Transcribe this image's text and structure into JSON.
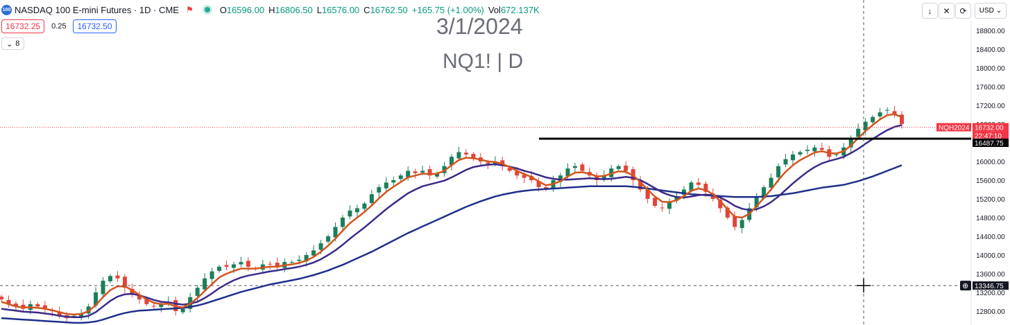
{
  "header": {
    "logo": "100",
    "symbol_title": "NASDAQ 100 E-mini Futures · 1D · CME",
    "flag_icon": "flag-icon",
    "ohlc": {
      "o_label": "O",
      "o": "16596.00",
      "h_label": "H",
      "h": "16806.50",
      "l_label": "L",
      "l": "16576.00",
      "c_label": "C",
      "c": "16762.50",
      "change": "+165.75 (+1.00%)",
      "vol_label": "Vol",
      "vol": "672.137K"
    }
  },
  "trade": {
    "bid": "16732.25",
    "spread": "0.25",
    "ask": "16732.50"
  },
  "indicators": {
    "toggle_icon": "chevron-down-icon",
    "count": "8"
  },
  "watermark": {
    "date": "3/1/2024",
    "ticker": "NQ1! | D"
  },
  "toolbar": {
    "download_icon": "download-icon",
    "collapse_icon": "collapse-icon",
    "refresh_icon": "refresh-icon",
    "currency": "USD"
  },
  "price_axis": {
    "ticks": [
      "18800.00",
      "18400.00",
      "18000.00",
      "17600.00",
      "17200.00",
      "16800.00",
      "16000.00",
      "15600.00",
      "15200.00",
      "14800.00",
      "14400.00",
      "14000.00",
      "13600.00",
      "13200.00",
      "12800.00"
    ]
  },
  "tags": {
    "symbol_tag": "NQH2024",
    "last_price": "16732.00",
    "countdown": "22:47:10",
    "hline_price": "16487.75",
    "crosshair_price": "13346.75"
  },
  "colors": {
    "up": "#1a7f5a",
    "down": "#e0443a",
    "ma_fast": "#d4541c",
    "ma_mid": "#3a2a8a",
    "ma_slow": "#1f2f8c",
    "hline": "#000000",
    "last_price": "#f23645"
  },
  "chart_data": {
    "type": "candlestick",
    "ylim": [
      12700,
      18900
    ],
    "hline": 16487.75,
    "last_price": 16732.0,
    "crosshair_y": 13346.75,
    "close_path": [
      13050,
      12950,
      12900,
      12850,
      12950,
      12900,
      12850,
      12800,
      12700,
      12650,
      12700,
      12750,
      12900,
      13200,
      13450,
      13550,
      13500,
      13300,
      13150,
      13050,
      12950,
      12900,
      12950,
      13000,
      12800,
      12850,
      13100,
      13300,
      13500,
      13650,
      13750,
      13750,
      13800,
      13850,
      13750,
      13700,
      13800,
      13800,
      13750,
      13850,
      13850,
      13900,
      14000,
      14100,
      14250,
      14400,
      14600,
      14800,
      14950,
      15000,
      15100,
      15300,
      15450,
      15550,
      15600,
      15700,
      15800,
      15750,
      15800,
      15700,
      15750,
      15900,
      16100,
      16200,
      16150,
      16050,
      16000,
      15950,
      16000,
      15900,
      15800,
      15700,
      15650,
      15600,
      15450,
      15400,
      15600,
      15700,
      15850,
      15900,
      15800,
      15700,
      15600,
      15700,
      15850,
      15900,
      15800,
      15600,
      15400,
      15200,
      15050,
      15000,
      15150,
      15250,
      15400,
      15550,
      15500,
      15350,
      15200,
      15000,
      14800,
      14600,
      14750,
      15000,
      15250,
      15450,
      15650,
      15900,
      16050,
      16150,
      16200,
      16250,
      16300,
      16250,
      16100,
      16150,
      16300,
      16500,
      16700,
      16850,
      16950,
      17050,
      17100,
      17000,
      16800
    ],
    "ma_fast": [
      13000,
      12950,
      12900,
      12880,
      12880,
      12870,
      12850,
      12820,
      12780,
      12740,
      12730,
      12740,
      12800,
      12930,
      13100,
      13250,
      13330,
      13330,
      13250,
      13150,
      13050,
      12980,
      12950,
      12960,
      12900,
      12880,
      12960,
      13080,
      13230,
      13380,
      13520,
      13600,
      13660,
      13710,
      13710,
      13710,
      13730,
      13750,
      13750,
      13780,
      13800,
      13830,
      13880,
      13960,
      14070,
      14200,
      14350,
      14520,
      14680,
      14800,
      14920,
      15060,
      15210,
      15350,
      15460,
      15560,
      15660,
      15700,
      15740,
      15730,
      15740,
      15800,
      15920,
      16030,
      16080,
      16070,
      16040,
      16000,
      15990,
      15950,
      15880,
      15800,
      15730,
      15670,
      15570,
      15490,
      15520,
      15580,
      15680,
      15760,
      15770,
      15740,
      15680,
      15690,
      15740,
      15790,
      15780,
      15700,
      15560,
      15400,
      15250,
      15140,
      15130,
      15170,
      15260,
      15370,
      15420,
      15390,
      15300,
      15150,
      14980,
      14820,
      14800,
      14880,
      15040,
      15220,
      15400,
      15600,
      15780,
      15920,
      16030,
      16110,
      16190,
      16220,
      16180,
      16170,
      16220,
      16340,
      16500,
      16650,
      16780,
      16900,
      16990,
      17010,
      16950
    ],
    "ma_mid": [
      12850,
      12830,
      12810,
      12790,
      12780,
      12770,
      12750,
      12730,
      12700,
      12680,
      12670,
      12670,
      12700,
      12780,
      12900,
      13020,
      13110,
      13160,
      13170,
      13140,
      13090,
      13040,
      13000,
      12990,
      12960,
      12940,
      12960,
      13000,
      13080,
      13180,
      13290,
      13380,
      13460,
      13520,
      13560,
      13590,
      13620,
      13650,
      13670,
      13700,
      13720,
      13750,
      13790,
      13840,
      13910,
      14000,
      14100,
      14220,
      14350,
      14470,
      14590,
      14720,
      14850,
      14980,
      15100,
      15210,
      15320,
      15400,
      15470,
      15510,
      15550,
      15590,
      15660,
      15740,
      15820,
      15880,
      15910,
      15930,
      15940,
      15920,
      15890,
      15850,
      15800,
      15760,
      15710,
      15660,
      15630,
      15610,
      15610,
      15620,
      15630,
      15640,
      15630,
      15620,
      15630,
      15650,
      15670,
      15650,
      15600,
      15520,
      15430,
      15340,
      15280,
      15240,
      15230,
      15250,
      15280,
      15290,
      15280,
      15230,
      15150,
      15050,
      14990,
      14960,
      14980,
      15040,
      15130,
      15250,
      15390,
      15530,
      15660,
      15780,
      15880,
      15960,
      16010,
      16050,
      16100,
      16180,
      16270,
      16380,
      16480,
      16580,
      16670,
      16740,
      16780
    ],
    "ma_slow": [
      12650,
      12640,
      12630,
      12620,
      12610,
      12600,
      12590,
      12580,
      12570,
      12560,
      12550,
      12550,
      12560,
      12580,
      12620,
      12670,
      12720,
      12760,
      12790,
      12810,
      12820,
      12830,
      12840,
      12850,
      12860,
      12870,
      12890,
      12920,
      12960,
      13010,
      13060,
      13110,
      13160,
      13210,
      13250,
      13290,
      13330,
      13370,
      13400,
      13430,
      13460,
      13490,
      13530,
      13570,
      13620,
      13670,
      13730,
      13790,
      13860,
      13930,
      14000,
      14070,
      14150,
      14230,
      14310,
      14390,
      14470,
      14540,
      14610,
      14680,
      14750,
      14820,
      14890,
      14960,
      15030,
      15090,
      15150,
      15200,
      15250,
      15290,
      15320,
      15350,
      15370,
      15390,
      15400,
      15410,
      15420,
      15430,
      15440,
      15450,
      15460,
      15470,
      15470,
      15470,
      15470,
      15470,
      15470,
      15460,
      15440,
      15420,
      15400,
      15380,
      15360,
      15340,
      15320,
      15300,
      15290,
      15280,
      15270,
      15260,
      15250,
      15240,
      15240,
      15240,
      15240,
      15250,
      15260,
      15280,
      15300,
      15320,
      15350,
      15380,
      15410,
      15440,
      15460,
      15480,
      15500,
      15540,
      15580,
      15630,
      15680,
      15740,
      15800,
      15860,
      15920
    ]
  }
}
